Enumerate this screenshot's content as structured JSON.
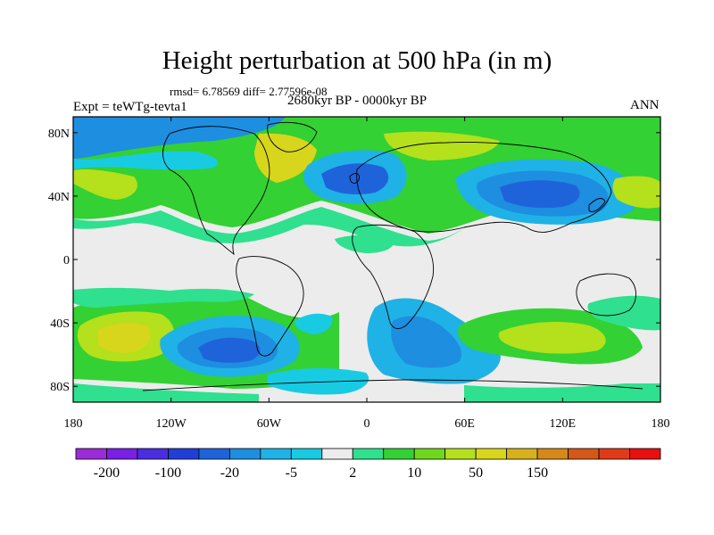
{
  "title": "Height perturbation at 500 hPa (in m)",
  "stats_line": "rmsd= 6.78569  diff= 2.77596e-08",
  "period_label": "2680kyr BP - 0000kyr BP",
  "experiment_label": "Expt = teWTg-tevta1",
  "season_label": "ANN",
  "lat_ticks": [
    {
      "value": 80,
      "label": "80N"
    },
    {
      "value": 40,
      "label": "40N"
    },
    {
      "value": 0,
      "label": "0"
    },
    {
      "value": -40,
      "label": "40S"
    },
    {
      "value": -80,
      "label": "80S"
    }
  ],
  "lon_ticks": [
    {
      "value": -180,
      "label": "180"
    },
    {
      "value": -120,
      "label": "120W"
    },
    {
      "value": -60,
      "label": "60W"
    },
    {
      "value": 0,
      "label": "0"
    },
    {
      "value": 60,
      "label": "60E"
    },
    {
      "value": 120,
      "label": "120E"
    },
    {
      "value": 180,
      "label": "180"
    }
  ],
  "colorbar": {
    "colors": [
      "#9a2bd6",
      "#7a1fe6",
      "#4b2de0",
      "#1f3fd8",
      "#1f63db",
      "#1e8ee0",
      "#1fb2e6",
      "#18cbe3",
      "#ececec",
      "#2fe08f",
      "#33d133",
      "#6fd81c",
      "#b4e01c",
      "#d8d61c",
      "#d6b11c",
      "#d68818",
      "#d65818",
      "#e03b18",
      "#e81010"
    ],
    "labels": [
      {
        "boundary_index": 1,
        "text": "-200"
      },
      {
        "boundary_index": 3,
        "text": "-100"
      },
      {
        "boundary_index": 5,
        "text": "-20"
      },
      {
        "boundary_index": 7,
        "text": "-5"
      },
      {
        "boundary_index": 9,
        "text": "2"
      },
      {
        "boundary_index": 11,
        "text": "10"
      },
      {
        "boundary_index": 13,
        "text": "50"
      },
      {
        "boundary_index": 15,
        "text": "150"
      }
    ]
  }
}
